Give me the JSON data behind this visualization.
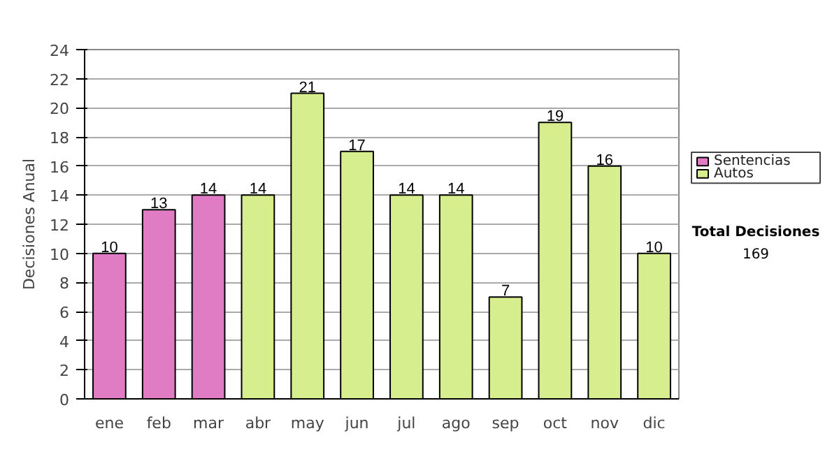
{
  "chart_data": {
    "type": "bar",
    "ylabel": "Decisiones Anual",
    "categories": [
      "ene",
      "feb",
      "mar",
      "abr",
      "may",
      "jun",
      "jul",
      "ago",
      "sep",
      "oct",
      "nov",
      "dic"
    ],
    "series": [
      {
        "name": "Sentencias",
        "color": "#e07cc4",
        "values": [
          10,
          13,
          14,
          null,
          null,
          null,
          null,
          null,
          null,
          null,
          null,
          null
        ]
      },
      {
        "name": "Autos",
        "color": "#d6ee8e",
        "values": [
          null,
          null,
          null,
          14,
          21,
          17,
          14,
          14,
          7,
          19,
          16,
          10
        ]
      }
    ],
    "ylim": [
      0,
      24
    ],
    "yticks": [
      0,
      2,
      4,
      6,
      8,
      10,
      12,
      14,
      16,
      18,
      20,
      22,
      24
    ],
    "grid": "y",
    "legend": "right",
    "data_labels": true,
    "annotations": [
      "Total Decisiones",
      "169"
    ]
  }
}
